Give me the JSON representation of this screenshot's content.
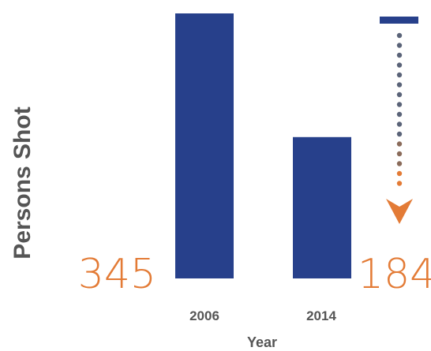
{
  "colors": {
    "bar": "#27408B",
    "accent": "#E37B36",
    "axis_text": "#555555",
    "dots": "#5A6378"
  },
  "chart_data": {
    "type": "bar",
    "categories": [
      "2006",
      "2014"
    ],
    "values": [
      345,
      184
    ],
    "data_labels": [
      "345",
      "184"
    ],
    "xlabel": "Year",
    "ylabel": "Persons Shot",
    "annotation": "decrease-arrow",
    "grid": false
  }
}
